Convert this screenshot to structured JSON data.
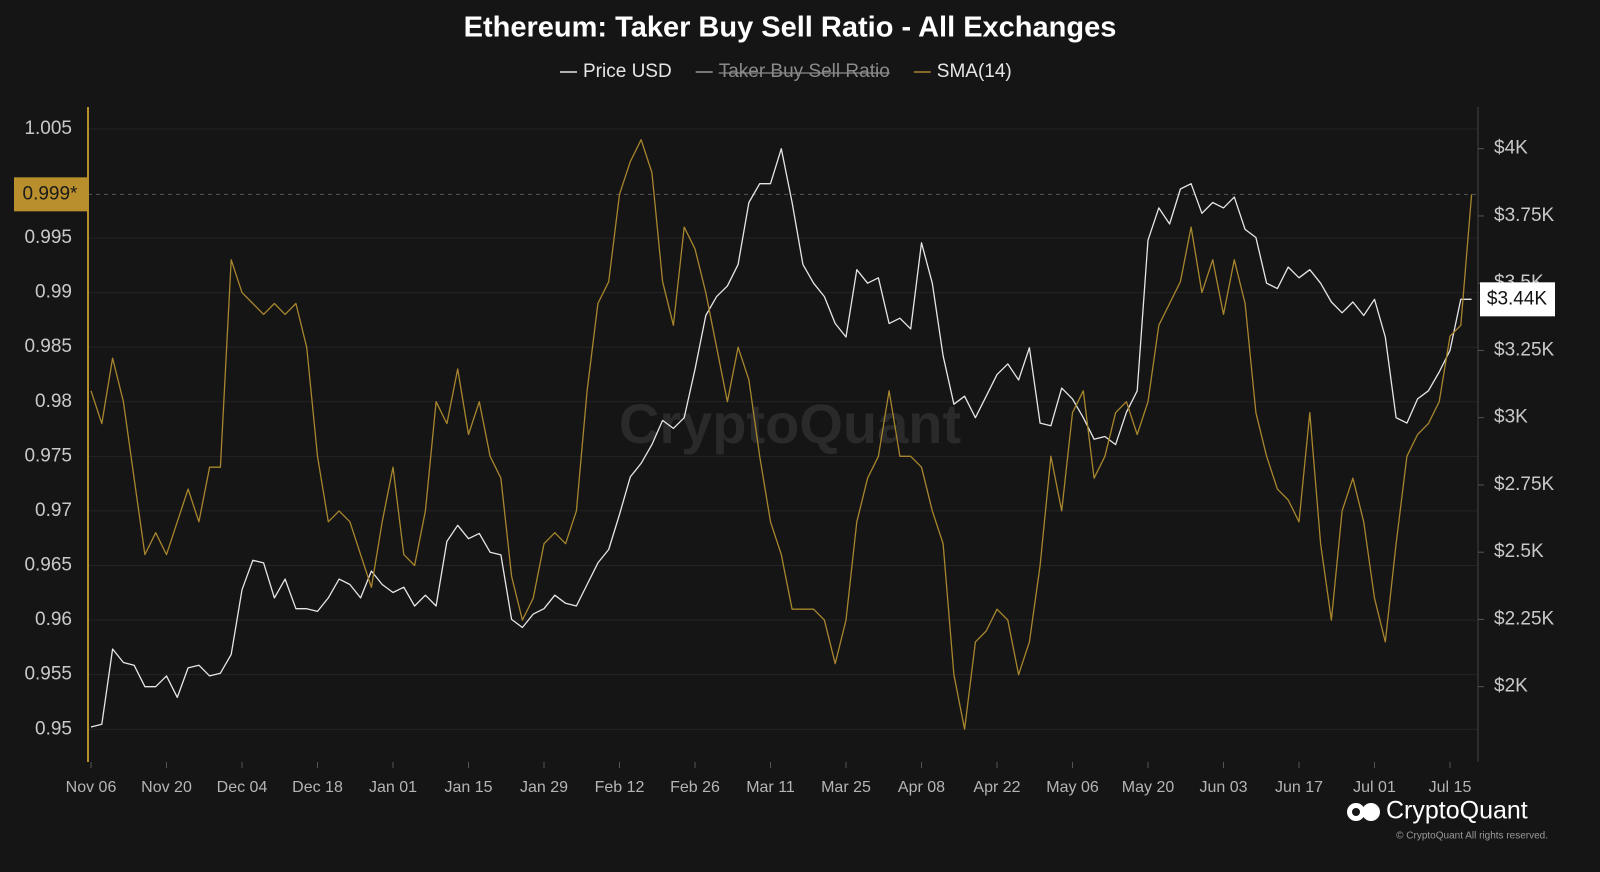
{
  "chart_data": {
    "type": "line",
    "title": "Ethereum: Taker Buy Sell Ratio - All Exchanges",
    "watermark": "CryptoQuant",
    "brand": "CryptoQuant",
    "copyright": "© CryptoQuant All rights reserved.",
    "categories": [
      "Nov 06",
      null,
      null,
      null,
      null,
      null,
      null,
      "Nov 20",
      null,
      null,
      null,
      null,
      null,
      null,
      "Dec 04",
      null,
      null,
      null,
      null,
      null,
      null,
      "Dec 18",
      null,
      null,
      null,
      null,
      null,
      null,
      "Jan 01",
      null,
      null,
      null,
      null,
      null,
      null,
      "Jan 15",
      null,
      null,
      null,
      null,
      null,
      null,
      "Jan 29",
      null,
      null,
      null,
      null,
      null,
      null,
      "Feb 12",
      null,
      null,
      null,
      null,
      null,
      null,
      "Feb 26",
      null,
      null,
      null,
      null,
      null,
      null,
      "Mar 11",
      null,
      null,
      null,
      null,
      null,
      null,
      "Mar 25",
      null,
      null,
      null,
      null,
      null,
      null,
      "Apr 08",
      null,
      null,
      null,
      null,
      null,
      null,
      "Apr 22",
      null,
      null,
      null,
      null,
      null,
      null,
      "May 06",
      null,
      null,
      null,
      null,
      null,
      null,
      "May 20",
      null,
      null,
      null,
      null,
      null,
      null,
      "Jun 03",
      null,
      null,
      null,
      null,
      null,
      null,
      "Jun 17",
      null,
      null,
      null,
      null,
      null,
      null,
      "Jul 01",
      null,
      null,
      null,
      null,
      null,
      null,
      "Jul 15",
      null,
      null
    ],
    "series": [
      {
        "name": "Price USD",
        "color": "#e6e6e6",
        "axis": "y2",
        "visible": true,
        "values": [
          1850,
          1860,
          2140,
          2090,
          2080,
          2000,
          2000,
          2040,
          1960,
          2070,
          2080,
          2040,
          2050,
          2120,
          2360,
          2470,
          2460,
          2330,
          2400,
          2290,
          2290,
          2280,
          2330,
          2400,
          2380,
          2330,
          2430,
          2380,
          2350,
          2370,
          2300,
          2340,
          2300,
          2540,
          2600,
          2550,
          2570,
          2500,
          2490,
          2250,
          2220,
          2270,
          2290,
          2340,
          2310,
          2300,
          2380,
          2460,
          2510,
          2640,
          2780,
          2830,
          2900,
          2990,
          2960,
          3000,
          3180,
          3380,
          3450,
          3490,
          3570,
          3800,
          3870,
          3870,
          4000,
          3800,
          3570,
          3500,
          3450,
          3350,
          3300,
          3550,
          3500,
          3520,
          3350,
          3370,
          3330,
          3650,
          3500,
          3230,
          3050,
          3080,
          3000,
          3080,
          3160,
          3200,
          3140,
          3260,
          2980,
          2970,
          3110,
          3070,
          3000,
          2920,
          2930,
          2900,
          3020,
          3100,
          3660,
          3780,
          3720,
          3850,
          3870,
          3760,
          3800,
          3780,
          3820,
          3700,
          3670,
          3500,
          3480,
          3560,
          3520,
          3550,
          3500,
          3430,
          3390,
          3430,
          3380,
          3440,
          3300,
          3000,
          2980,
          3070,
          3100,
          3170,
          3250,
          3440,
          3440
        ]
      },
      {
        "name": "Taker Buy Sell Ratio",
        "color": "#9a9a9a",
        "visible": false
      },
      {
        "name": "SMA(14)",
        "color": "#a8862e",
        "axis": "y",
        "visible": true,
        "values": [
          0.981,
          0.978,
          0.984,
          0.98,
          0.973,
          0.966,
          0.968,
          0.966,
          0.969,
          0.972,
          0.969,
          0.974,
          0.974,
          0.993,
          0.99,
          0.989,
          0.988,
          0.989,
          0.988,
          0.989,
          0.985,
          0.975,
          0.969,
          0.97,
          0.969,
          0.966,
          0.963,
          0.969,
          0.974,
          0.966,
          0.965,
          0.97,
          0.98,
          0.978,
          0.983,
          0.977,
          0.98,
          0.975,
          0.973,
          0.964,
          0.96,
          0.962,
          0.967,
          0.968,
          0.967,
          0.97,
          0.981,
          0.989,
          0.991,
          0.999,
          1.002,
          1.004,
          1.001,
          0.991,
          0.987,
          0.996,
          0.994,
          0.99,
          0.985,
          0.98,
          0.985,
          0.982,
          0.975,
          0.969,
          0.966,
          0.961,
          0.961,
          0.961,
          0.96,
          0.956,
          0.96,
          0.969,
          0.973,
          0.975,
          0.981,
          0.975,
          0.975,
          0.974,
          0.97,
          0.967,
          0.955,
          0.95,
          0.958,
          0.959,
          0.961,
          0.96,
          0.955,
          0.958,
          0.965,
          0.975,
          0.97,
          0.979,
          0.981,
          0.973,
          0.975,
          0.979,
          0.98,
          0.977,
          0.98,
          0.987,
          0.989,
          0.991,
          0.996,
          0.99,
          0.993,
          0.988,
          0.993,
          0.989,
          0.979,
          0.975,
          0.972,
          0.971,
          0.969,
          0.979,
          0.967,
          0.96,
          0.97,
          0.973,
          0.969,
          0.962,
          0.958,
          0.967,
          0.975,
          0.977,
          0.978,
          0.98,
          0.986,
          0.987,
          0.999
        ]
      }
    ],
    "ylim": [
      0.947,
      1.007
    ],
    "yticks": [
      0.95,
      0.955,
      0.96,
      0.965,
      0.97,
      0.975,
      0.98,
      0.985,
      0.99,
      0.995,
      1.005
    ],
    "y2lim": [
      1720,
      4155
    ],
    "y2ticks": [
      {
        "value": 2000,
        "label": "$2K"
      },
      {
        "value": 2250,
        "label": "$2.25K"
      },
      {
        "value": 2500,
        "label": "$2.5K"
      },
      {
        "value": 2750,
        "label": "$2.75K"
      },
      {
        "value": 3000,
        "label": "$3K"
      },
      {
        "value": 3250,
        "label": "$3.25K"
      },
      {
        "value": 3500,
        "label": "$3.5K"
      },
      {
        "value": 3750,
        "label": "$3.75K"
      },
      {
        "value": 4000,
        "label": "$4K"
      }
    ],
    "grid": true,
    "y_marker": {
      "value": 0.999,
      "label": "0.999*"
    },
    "y2_marker": {
      "value": 3440,
      "label": "$3.44K"
    }
  }
}
